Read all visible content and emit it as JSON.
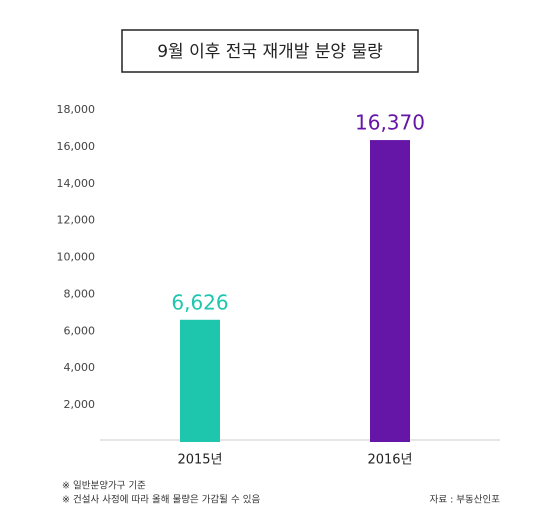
{
  "chart_data": {
    "type": "bar",
    "title": "9월 이후 전국 재개발 분양 물량",
    "categories": [
      "2015년",
      "2016년"
    ],
    "values": [
      6626,
      16370
    ],
    "value_labels": [
      "6,626",
      "16,370"
    ],
    "colors": [
      "#1ec6ae",
      "#6516a6"
    ],
    "ylim": [
      0,
      18000
    ],
    "yticks": [
      {
        "value": 2000,
        "label": "2,000"
      },
      {
        "value": 4000,
        "label": "4,000"
      },
      {
        "value": 6000,
        "label": "6,000"
      },
      {
        "value": 8000,
        "label": "8,000"
      },
      {
        "value": 10000,
        "label": "10,000"
      },
      {
        "value": 12000,
        "label": "12,000"
      },
      {
        "value": 14000,
        "label": "14,000"
      },
      {
        "value": 16000,
        "label": "16,000"
      },
      {
        "value": 18000,
        "label": "18,000"
      }
    ],
    "notes": [
      "※ 일반분양가구 기준",
      "※ 건설사 사정에 따라 올해 물량은 가감될 수 있음"
    ],
    "source": "자료 : 부동산인포"
  }
}
